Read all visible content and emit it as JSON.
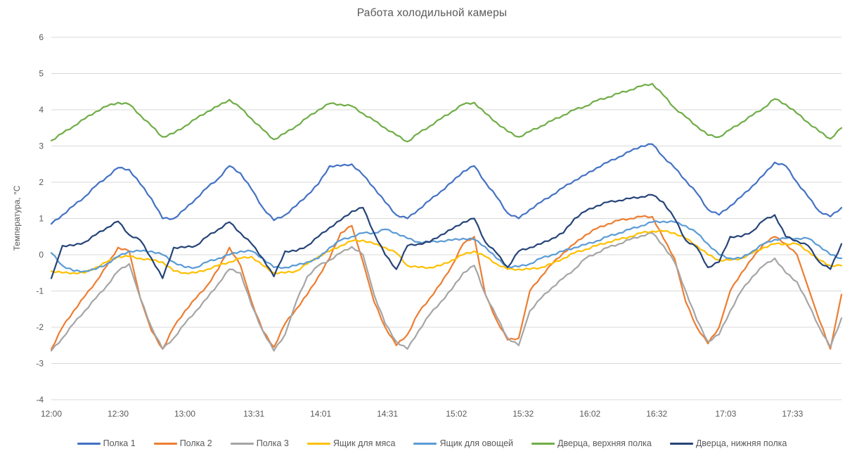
{
  "title": "Работа холодильной камеры",
  "chart_data": {
    "type": "line",
    "title": "Работа холодильной камеры",
    "xlabel": "",
    "ylabel": "Температура, °C",
    "ylim": [
      -4,
      6
    ],
    "y_ticks": [
      6,
      5,
      4,
      3,
      2,
      1,
      0,
      -1,
      -2,
      -3,
      -4
    ],
    "x_tick_labels": [
      "12:00",
      "12:30",
      "13:00",
      "13:31",
      "14:01",
      "14:31",
      "15:02",
      "15:32",
      "16:02",
      "16:32",
      "17:03",
      "17:33"
    ],
    "x_tick_minutes": [
      0,
      30,
      60,
      91,
      121,
      151,
      182,
      212,
      242,
      272,
      303,
      333
    ],
    "x_range_minutes": [
      0,
      355
    ],
    "grid": "horizontal",
    "legend_position": "bottom",
    "sample_interval_minutes": 5,
    "x": [
      "12:00",
      "12:05",
      "12:10",
      "12:15",
      "12:20",
      "12:25",
      "12:30",
      "12:35",
      "12:40",
      "12:45",
      "12:50",
      "12:55",
      "13:00",
      "13:05",
      "13:10",
      "13:15",
      "13:20",
      "13:25",
      "13:30",
      "13:35",
      "13:40",
      "13:45",
      "13:50",
      "13:55",
      "14:00",
      "14:05",
      "14:10",
      "14:15",
      "14:20",
      "14:25",
      "14:30",
      "14:35",
      "14:40",
      "14:45",
      "14:50",
      "14:55",
      "15:00",
      "15:05",
      "15:10",
      "15:15",
      "15:20",
      "15:25",
      "15:30",
      "15:35",
      "15:40",
      "15:45",
      "15:50",
      "15:55",
      "16:00",
      "16:05",
      "16:10",
      "16:15",
      "16:20",
      "16:25",
      "16:30",
      "16:35",
      "16:40",
      "16:45",
      "16:50",
      "16:55",
      "17:00",
      "17:05",
      "17:10",
      "17:15",
      "17:20",
      "17:25",
      "17:30",
      "17:35",
      "17:40",
      "17:45",
      "17:50",
      "17:55"
    ],
    "series": [
      {
        "name": "Полка 1",
        "color": "#4472C4",
        "values": [
          0.85,
          1.1,
          1.35,
          1.6,
          1.9,
          2.15,
          2.4,
          2.35,
          1.95,
          1.55,
          1.0,
          1.0,
          1.25,
          1.55,
          1.85,
          2.1,
          2.45,
          2.25,
          1.8,
          1.3,
          0.95,
          1.1,
          1.35,
          1.65,
          1.95,
          2.45,
          2.45,
          2.5,
          2.2,
          1.85,
          1.45,
          1.1,
          1.0,
          1.25,
          1.5,
          1.75,
          2.0,
          2.3,
          2.45,
          2.0,
          1.6,
          1.15,
          1.0,
          1.25,
          1.45,
          1.65,
          1.85,
          2.05,
          2.2,
          2.4,
          2.55,
          2.7,
          2.85,
          3.0,
          3.05,
          2.7,
          2.4,
          2.05,
          1.7,
          1.25,
          1.1,
          1.35,
          1.6,
          1.9,
          2.2,
          2.55,
          2.45,
          2.0,
          1.6,
          1.2,
          1.05,
          1.3
        ]
      },
      {
        "name": "Полка 2",
        "color": "#ED7D31",
        "values": [
          -2.6,
          -2.0,
          -1.55,
          -1.15,
          -0.75,
          -0.3,
          0.2,
          0.1,
          -1.2,
          -2.1,
          -2.6,
          -2.0,
          -1.55,
          -1.2,
          -0.85,
          -0.4,
          0.2,
          -0.3,
          -1.3,
          -2.1,
          -2.55,
          -1.9,
          -1.5,
          -1.1,
          -0.6,
          -0.1,
          0.6,
          0.8,
          -0.2,
          -1.3,
          -2.0,
          -2.5,
          -2.2,
          -1.6,
          -1.2,
          -0.8,
          -0.3,
          0.3,
          0.5,
          -1.1,
          -1.8,
          -2.35,
          -2.3,
          -1.0,
          -0.6,
          -0.25,
          0.05,
          0.3,
          0.55,
          0.72,
          0.85,
          0.95,
          1.0,
          1.05,
          1.05,
          0.45,
          -0.1,
          -1.3,
          -2.0,
          -2.45,
          -2.0,
          -1.0,
          -0.5,
          -0.1,
          0.3,
          0.5,
          0.3,
          0.0,
          -0.9,
          -1.8,
          -2.6,
          -1.1
        ]
      },
      {
        "name": "Полка 3",
        "color": "#A5A5A5",
        "values": [
          -2.65,
          -2.3,
          -1.9,
          -1.55,
          -1.2,
          -0.85,
          -0.45,
          -0.25,
          -1.2,
          -2.0,
          -2.6,
          -2.3,
          -1.9,
          -1.55,
          -1.2,
          -0.8,
          -0.4,
          -0.5,
          -1.4,
          -2.1,
          -2.65,
          -2.2,
          -1.3,
          -0.6,
          -0.3,
          -0.15,
          0.05,
          0.22,
          0.0,
          -1.1,
          -1.9,
          -2.4,
          -2.6,
          -2.1,
          -1.65,
          -1.3,
          -0.95,
          -0.5,
          -0.3,
          -1.1,
          -1.7,
          -2.3,
          -2.5,
          -1.55,
          -1.2,
          -0.9,
          -0.65,
          -0.4,
          -0.1,
          0.05,
          0.2,
          0.3,
          0.42,
          0.52,
          0.6,
          0.25,
          -0.2,
          -1.0,
          -1.8,
          -2.4,
          -2.2,
          -1.55,
          -1.0,
          -0.6,
          -0.3,
          -0.1,
          -0.5,
          -0.75,
          -1.35,
          -2.0,
          -2.55,
          -1.75
        ]
      },
      {
        "name": "Ящик для мяса",
        "color": "#FFC000",
        "values": [
          -0.45,
          -0.5,
          -0.5,
          -0.5,
          -0.35,
          -0.2,
          -0.05,
          -0.05,
          -0.1,
          -0.15,
          -0.2,
          -0.45,
          -0.5,
          -0.5,
          -0.4,
          -0.3,
          -0.2,
          -0.1,
          -0.05,
          -0.3,
          -0.5,
          -0.5,
          -0.45,
          -0.25,
          -0.05,
          0.1,
          0.25,
          0.38,
          0.4,
          0.3,
          0.2,
          0.05,
          -0.3,
          -0.35,
          -0.35,
          -0.3,
          -0.15,
          0.0,
          0.1,
          -0.05,
          -0.25,
          -0.4,
          -0.4,
          -0.4,
          -0.35,
          -0.25,
          -0.1,
          0.05,
          0.15,
          0.25,
          0.35,
          0.42,
          0.5,
          0.6,
          0.65,
          0.65,
          0.6,
          0.45,
          0.25,
          0.0,
          -0.15,
          -0.15,
          -0.1,
          0.05,
          0.2,
          0.3,
          0.3,
          0.3,
          0.1,
          -0.15,
          -0.3,
          -0.3
        ]
      },
      {
        "name": "Ящик для овощей",
        "color": "#5B9BD5",
        "values": [
          0.05,
          -0.3,
          -0.45,
          -0.45,
          -0.4,
          -0.25,
          -0.05,
          0.1,
          0.1,
          0.1,
          0.0,
          -0.2,
          -0.35,
          -0.35,
          -0.2,
          -0.1,
          0.0,
          0.1,
          0.1,
          -0.1,
          -0.35,
          -0.35,
          -0.3,
          -0.2,
          -0.1,
          0.2,
          0.4,
          0.5,
          0.6,
          0.6,
          0.7,
          0.6,
          0.45,
          0.35,
          0.35,
          0.38,
          0.4,
          0.45,
          0.42,
          0.22,
          -0.1,
          -0.33,
          -0.33,
          -0.25,
          -0.1,
          0.0,
          0.1,
          0.2,
          0.28,
          0.38,
          0.5,
          0.6,
          0.7,
          0.8,
          0.9,
          0.92,
          0.9,
          0.8,
          0.6,
          0.3,
          0.0,
          -0.1,
          -0.1,
          0.1,
          0.3,
          0.42,
          0.45,
          0.45,
          0.45,
          0.25,
          0.0,
          -0.1
        ]
      },
      {
        "name": "Дверца, верхняя полка",
        "color": "#70AD47",
        "values": [
          3.15,
          3.35,
          3.55,
          3.75,
          3.95,
          4.1,
          4.2,
          4.15,
          3.85,
          3.55,
          3.25,
          3.35,
          3.55,
          3.75,
          3.95,
          4.1,
          4.28,
          4.05,
          3.75,
          3.45,
          3.18,
          3.35,
          3.55,
          3.78,
          4.0,
          4.17,
          4.15,
          4.1,
          3.9,
          3.7,
          3.5,
          3.3,
          3.12,
          3.35,
          3.55,
          3.75,
          3.95,
          4.15,
          4.2,
          3.9,
          3.65,
          3.4,
          3.25,
          3.4,
          3.55,
          3.7,
          3.85,
          4.0,
          4.1,
          4.25,
          4.35,
          4.45,
          4.55,
          4.65,
          4.72,
          4.4,
          4.05,
          3.8,
          3.55,
          3.3,
          3.25,
          3.45,
          3.65,
          3.85,
          4.05,
          4.3,
          4.15,
          3.9,
          3.65,
          3.4,
          3.2,
          3.5
        ]
      },
      {
        "name": "Дверца, нижняя полка",
        "color": "#264478",
        "values": [
          -0.65,
          0.25,
          0.25,
          0.35,
          0.55,
          0.75,
          0.92,
          0.55,
          0.4,
          -0.1,
          -0.65,
          0.2,
          0.2,
          0.25,
          0.5,
          0.7,
          0.9,
          0.6,
          0.3,
          -0.1,
          -0.6,
          0.1,
          0.1,
          0.25,
          0.5,
          0.75,
          0.95,
          1.2,
          1.3,
          0.6,
          0.0,
          -0.4,
          0.25,
          0.3,
          0.35,
          0.55,
          0.7,
          0.9,
          1.0,
          0.35,
          0.05,
          -0.35,
          0.1,
          0.2,
          0.3,
          0.45,
          0.6,
          1.0,
          1.2,
          1.35,
          1.45,
          1.5,
          1.55,
          1.6,
          1.65,
          1.45,
          1.0,
          0.4,
          0.2,
          -0.35,
          -0.2,
          0.5,
          0.5,
          0.65,
          0.95,
          1.1,
          0.5,
          0.38,
          0.25,
          -0.2,
          -0.4,
          0.3
        ]
      }
    ],
    "colors": {
      "grid": "#D9D9D9",
      "text": "#595959",
      "background": "#FFFFFF"
    }
  }
}
